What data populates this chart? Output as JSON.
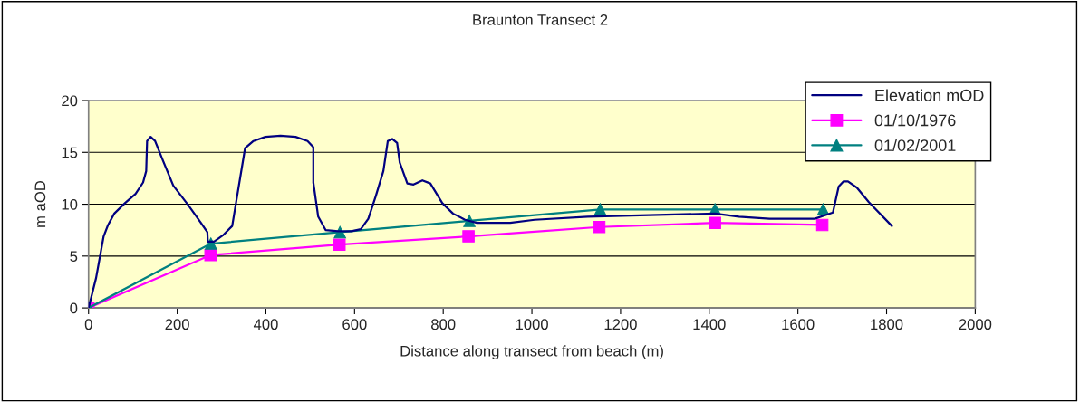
{
  "chart_data": {
    "type": "line",
    "title": "Braunton Transect 2",
    "xlabel": "Distance along transect from beach (m)",
    "ylabel": "m aOD",
    "xlim": [
      0,
      2000
    ],
    "xticks": [
      0,
      200,
      400,
      600,
      800,
      1000,
      1200,
      1400,
      1600,
      1800,
      2000
    ],
    "ylim": [
      0,
      20
    ],
    "yticks": [
      0,
      5,
      10,
      15,
      20
    ],
    "grid": "y",
    "legend": "top right",
    "series": [
      {
        "name": "Elevation mOD",
        "color": "#000080",
        "marker": "none",
        "x": [
          0,
          17,
          34,
          44,
          58,
          82,
          106,
          123,
          130,
          132,
          140,
          150,
          167,
          191,
          225,
          252,
          268,
          269,
          283,
          303,
          324,
          334,
          353,
          372,
          399,
          433,
          467,
          494,
          507,
          507,
          518,
          535,
          563,
          593,
          614,
          631,
          648,
          665,
          675,
          685,
          696,
          702,
          719,
          733,
          753,
          771,
          798,
          822,
          849,
          876,
          951,
          1006,
          1126,
          1413,
          1467,
          1536,
          1638,
          1679,
          1692,
          1703,
          1713,
          1733,
          1760,
          1812
        ],
        "values": [
          0,
          2.9,
          6.9,
          8.0,
          9.1,
          10.1,
          11.0,
          12.1,
          13.2,
          16.1,
          16.5,
          16.1,
          14.3,
          11.8,
          9.9,
          8.3,
          7.3,
          6.4,
          6.4,
          7.0,
          7.9,
          10.5,
          15.4,
          16.1,
          16.5,
          16.6,
          16.5,
          16.1,
          15.5,
          12.1,
          8.8,
          7.5,
          7.4,
          7.4,
          7.6,
          8.6,
          10.8,
          13.2,
          16.1,
          16.3,
          15.9,
          14.0,
          12.0,
          11.9,
          12.3,
          12.0,
          10.1,
          9.1,
          8.5,
          8.2,
          8.2,
          8.5,
          8.8,
          9.1,
          8.8,
          8.6,
          8.6,
          9.2,
          11.7,
          12.2,
          12.2,
          11.6,
          10.2,
          7.9
        ]
      },
      {
        "name": "01/10/1976",
        "color": "#ff00ff",
        "marker": "square",
        "x": [
          0,
          275,
          566,
          857,
          1152,
          1413,
          1655
        ],
        "values": [
          0,
          5.1,
          6.1,
          6.9,
          7.8,
          8.2,
          8.0
        ]
      },
      {
        "name": "01/02/2001",
        "color": "#008080",
        "marker": "triangle",
        "x": [
          0,
          276,
          567,
          859,
          1154,
          1413,
          1657
        ],
        "values": [
          0,
          6.2,
          7.3,
          8.4,
          9.5,
          9.5,
          9.5
        ]
      }
    ]
  }
}
